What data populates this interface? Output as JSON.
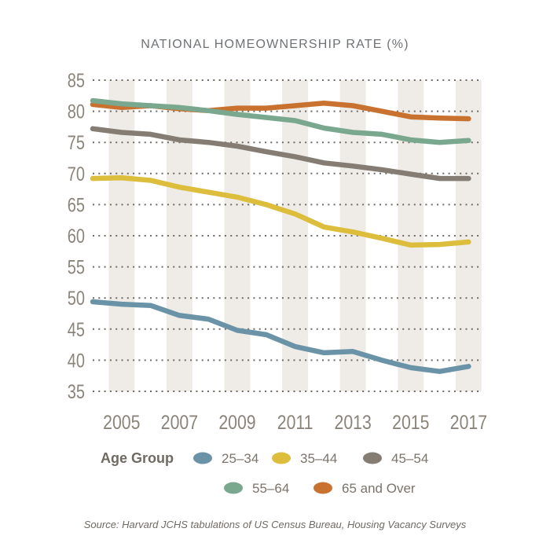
{
  "chart_data": {
    "type": "line",
    "title": "NATIONAL HOMEOWNERSHIP RATE (%)",
    "xlabel": "",
    "ylabel": "",
    "x": [
      2004,
      2005,
      2006,
      2007,
      2008,
      2009,
      2010,
      2011,
      2012,
      2013,
      2014,
      2015,
      2016,
      2017
    ],
    "x_tick_labels": [
      "2005",
      "2007",
      "2009",
      "2011",
      "2013",
      "2015",
      "2017"
    ],
    "y_tick_labels": [
      "35",
      "40",
      "45",
      "50",
      "55",
      "60",
      "65",
      "70",
      "75",
      "80",
      "85"
    ],
    "ylim": [
      35,
      85
    ],
    "grid": "horizontal dotted",
    "legend_title": "Age Group",
    "legend_position": "bottom",
    "series": [
      {
        "name": "25–34",
        "color": "#6a93a8",
        "values": [
          49.4,
          49.0,
          48.8,
          47.2,
          46.6,
          44.8,
          44.1,
          42.2,
          41.2,
          41.4,
          40.0,
          38.8,
          38.2,
          39.0
        ]
      },
      {
        "name": "35–44",
        "color": "#dcbd3c",
        "values": [
          69.2,
          69.3,
          68.9,
          67.8,
          67.0,
          66.2,
          65.0,
          63.5,
          61.4,
          60.6,
          59.6,
          58.5,
          58.6,
          59.0
        ]
      },
      {
        "name": "45–54",
        "color": "#857d73",
        "values": [
          77.2,
          76.6,
          76.3,
          75.4,
          75.0,
          74.4,
          73.5,
          72.7,
          71.7,
          71.2,
          70.6,
          69.9,
          69.2,
          69.2
        ]
      },
      {
        "name": "55–64",
        "color": "#7aa88f",
        "values": [
          81.7,
          81.2,
          80.9,
          80.6,
          80.1,
          79.5,
          79.0,
          78.5,
          77.3,
          76.6,
          76.3,
          75.4,
          75.0,
          75.3
        ]
      },
      {
        "name": "65 and Over",
        "color": "#c9722f",
        "values": [
          81.1,
          80.6,
          80.9,
          80.4,
          80.1,
          80.5,
          80.5,
          80.9,
          81.3,
          80.9,
          80.0,
          79.1,
          78.9,
          78.8
        ]
      }
    ],
    "source": "Source: Harvard JCHS tabulations of US Census Bureau, Housing Vacancy Surveys"
  }
}
